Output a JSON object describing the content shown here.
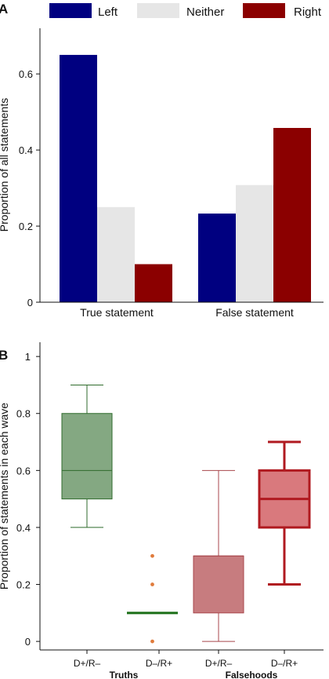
{
  "chart_data": [
    {
      "panel_label": "A",
      "type": "bar",
      "categories": [
        "True statement",
        "False statement"
      ],
      "ylabel": "Proportion of all statements",
      "ylim": [
        0,
        0.72
      ],
      "yticks": [
        0,
        0.2,
        0.4,
        0.6
      ],
      "legend_position": "top",
      "series": [
        {
          "name": "Left",
          "color": "#000080",
          "values": [
            0.65,
            0.233
          ]
        },
        {
          "name": "Neither",
          "color": "#e6e6e6",
          "values": [
            0.25,
            0.308
          ]
        },
        {
          "name": "Right",
          "color": "#8b0000",
          "values": [
            0.1,
            0.458
          ]
        }
      ]
    },
    {
      "panel_label": "B",
      "type": "box",
      "ylabel": "Proportion of statements in each wave",
      "ylim": [
        -0.03,
        1.05
      ],
      "yticks": [
        0,
        0.2,
        0.4,
        0.6,
        0.8,
        1
      ],
      "groups": [
        "Truths",
        "Falsehoods"
      ],
      "boxes": [
        {
          "label": "D+/R–",
          "group": "Truths",
          "min": 0.4,
          "q1": 0.5,
          "median": 0.6,
          "q3": 0.8,
          "max": 0.9,
          "outliers": [],
          "fill": "#84a882",
          "stroke": "#2f6b2c",
          "stroke_width": 1
        },
        {
          "label": "D–/R+",
          "group": "Truths",
          "min": 0.1,
          "q1": 0.1,
          "median": 0.1,
          "q3": 0.1,
          "max": 0.1,
          "outliers": [
            0,
            0.2,
            0.3
          ],
          "fill": "#84a882",
          "stroke": "#1a6e16",
          "stroke_width": 3
        },
        {
          "label": "D+/R–",
          "group": "Falsehoods",
          "min": 0,
          "q1": 0.1,
          "median": 0.3,
          "q3": 0.3,
          "max": 0.6,
          "outliers": [],
          "fill": "#c77c7f",
          "stroke": "#a8474c",
          "stroke_width": 1
        },
        {
          "label": "D–/R+",
          "group": "Falsehoods",
          "min": 0.2,
          "q1": 0.4,
          "median": 0.5,
          "q3": 0.6,
          "max": 0.7,
          "outliers": [],
          "fill": "#d9797d",
          "stroke": "#b01a20",
          "stroke_width": 3
        }
      ],
      "outlier_color": "#e07b3c"
    }
  ]
}
